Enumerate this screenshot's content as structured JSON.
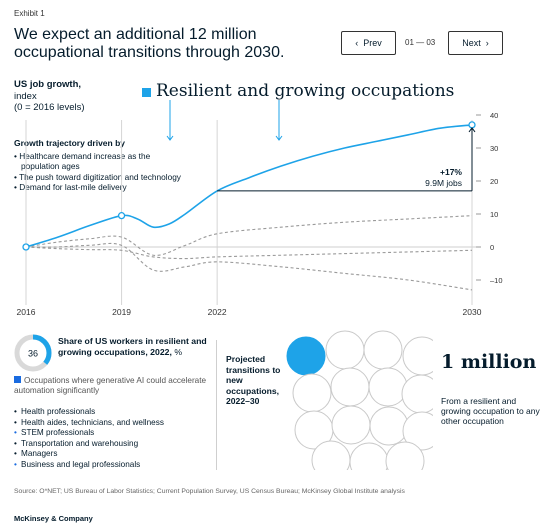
{
  "header": {
    "exhibit": "Exhibit 1",
    "title": "We expect an additional 12 million occupational transitions through 2030.",
    "prev_label": "Prev",
    "next_label": "Next",
    "page_indicator": "01 — 03"
  },
  "chart": {
    "ylabel_bold": "US job growth,",
    "ylabel_rest": "index",
    "ylabel_base": "(0 = 2016 levels)",
    "legend_label": "Resilient and growing occupations",
    "drivers_title": "Growth trajectory driven by",
    "drivers": [
      "Healthcare demand increase as the population ages",
      "The push toward digitization and technology",
      "Demand for last-mile delivery"
    ],
    "annotation_pct": "+17%",
    "annotation_jobs": "9.9M jobs"
  },
  "chart_data": {
    "type": "line",
    "title": "",
    "xlabel": "",
    "ylabel": "US job growth, index (0 = 2016 levels)",
    "x_ticks": [
      "2016",
      "2019",
      "2022",
      "2030"
    ],
    "x_tick_values": [
      2016,
      2019,
      2022,
      2030
    ],
    "y_ticks": [
      "40",
      "30",
      "20",
      "10",
      "0",
      "–10"
    ],
    "y_tick_values": [
      40,
      30,
      20,
      10,
      0,
      -10
    ],
    "ylim": [
      -14,
      42
    ],
    "xlim": [
      2016,
      2030
    ],
    "grid": false,
    "series": [
      {
        "name": "Resilient and growing occupations",
        "color": "#1ea3e8",
        "style": "solid",
        "points": [
          [
            2016,
            0
          ],
          [
            2017,
            3
          ],
          [
            2018,
            6.5
          ],
          [
            2019,
            9.5
          ],
          [
            2019.5,
            8.5
          ],
          [
            2020,
            6
          ],
          [
            2020.5,
            7
          ],
          [
            2021,
            10
          ],
          [
            2022,
            17
          ],
          [
            2023,
            21
          ],
          [
            2024,
            24.5
          ],
          [
            2025,
            27.5
          ],
          [
            2026,
            30
          ],
          [
            2027,
            32
          ],
          [
            2028,
            34
          ],
          [
            2029,
            36
          ],
          [
            2030,
            37
          ]
        ]
      },
      {
        "name": "",
        "color": "#9a9a9a",
        "style": "dashed",
        "points": [
          [
            2016,
            0
          ],
          [
            2017,
            1.5
          ],
          [
            2018,
            2.5
          ],
          [
            2019,
            3
          ],
          [
            2020,
            -2.5
          ],
          [
            2021,
            0.5
          ],
          [
            2022,
            4
          ],
          [
            2024,
            6
          ],
          [
            2026,
            7.5
          ],
          [
            2028,
            8.5
          ],
          [
            2030,
            9.5
          ]
        ]
      },
      {
        "name": "",
        "color": "#9a9a9a",
        "style": "dashed",
        "points": [
          [
            2016,
            0
          ],
          [
            2017,
            -0.5
          ],
          [
            2018,
            -0.8
          ],
          [
            2019,
            -1
          ],
          [
            2020,
            -3
          ],
          [
            2021,
            -3.5
          ],
          [
            2022,
            -3
          ],
          [
            2024,
            -2.5
          ],
          [
            2026,
            -2
          ],
          [
            2028,
            -1.5
          ],
          [
            2030,
            -1
          ]
        ]
      },
      {
        "name": "",
        "color": "#9a9a9a",
        "style": "dashed",
        "points": [
          [
            2016,
            0
          ],
          [
            2017,
            0
          ],
          [
            2018,
            0.5
          ],
          [
            2019,
            0.5
          ],
          [
            2020,
            -7
          ],
          [
            2021,
            -6
          ],
          [
            2022,
            -4.5
          ],
          [
            2024,
            -6
          ],
          [
            2026,
            -8
          ],
          [
            2028,
            -10
          ],
          [
            2030,
            -13
          ]
        ]
      }
    ],
    "annotations": [
      {
        "x_from": 2022,
        "x_to": 2030,
        "value": "+17%",
        "sub": "9.9M jobs"
      }
    ]
  },
  "share": {
    "value": 36,
    "value_label": "36",
    "title_bold": "Share of US workers in resilient and growing occupations, 2022,",
    "title_unit": "%",
    "ai_note": "Occupations where generative AI could accelerate automation significantly",
    "accent_color": "#1a6be0",
    "items": [
      {
        "label": "Health professionals",
        "ai": false
      },
      {
        "label": "Health aides, technicians, and wellness",
        "ai": false
      },
      {
        "label": "STEM professionals",
        "ai": true
      },
      {
        "label": "Transportation and warehousing",
        "ai": false
      },
      {
        "label": "Managers",
        "ai": false
      },
      {
        "label": "Business and legal professionals",
        "ai": true
      }
    ]
  },
  "projection": {
    "label": "Projected transitions to new occupations, 2022–30",
    "big_value": "1 million",
    "desc": "From a resilient and growing occupation to any other occupation",
    "circles_total": 12,
    "circles_highlighted": 1
  },
  "footer": {
    "source": "Source: O*NET; US Bureau of Labor Statistics; Current Population Survey, US Census Bureau; McKinsey Global Institute analysis",
    "brand": "McKinsey & Company"
  }
}
